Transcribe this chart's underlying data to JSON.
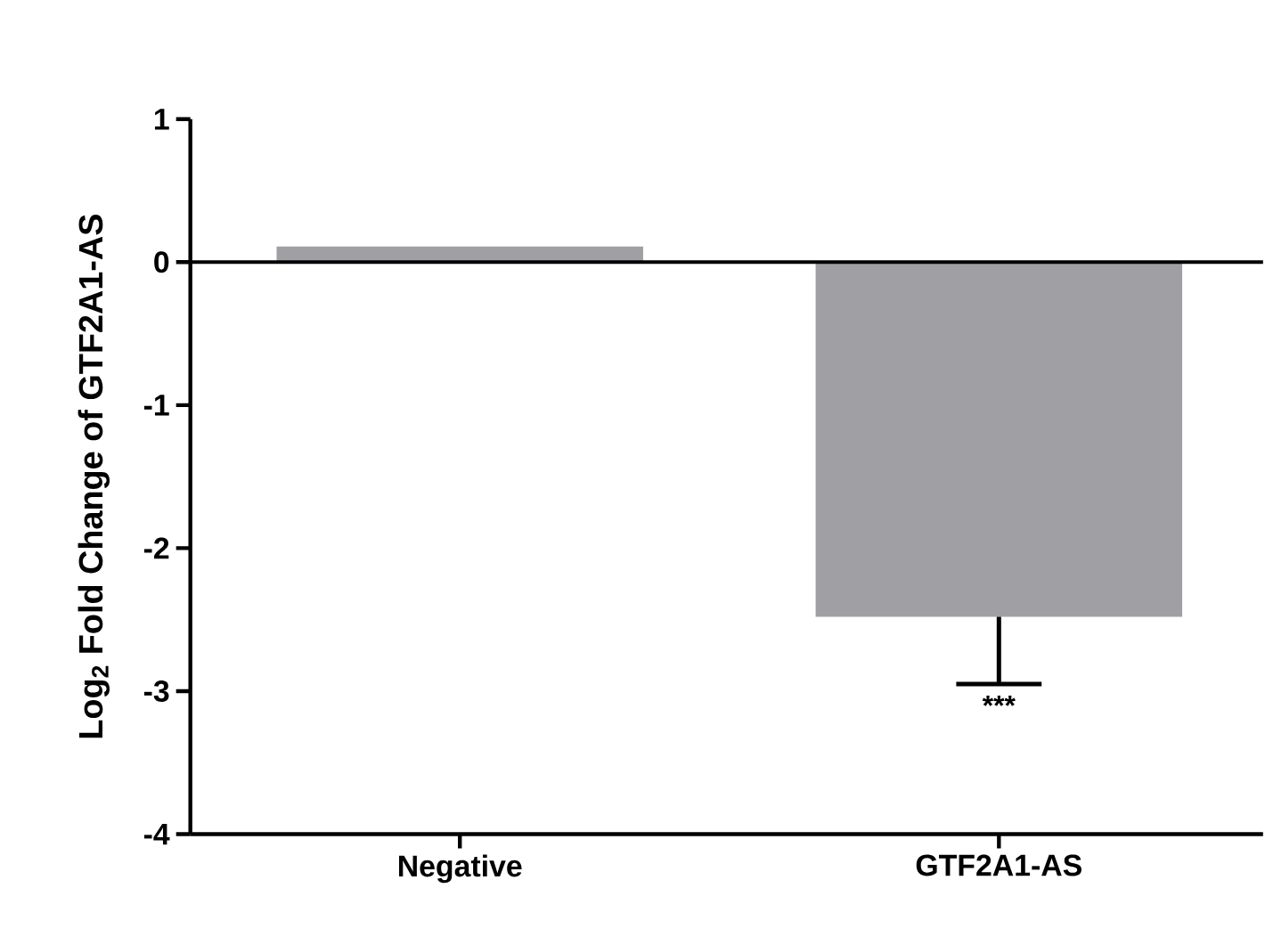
{
  "chart_data": {
    "type": "bar",
    "ylabel": "Log$_{2}$ Fold Change of GTF2A1-AS",
    "categories": [
      "Negative",
      "GTF2A1-AS"
    ],
    "values": [
      0.11,
      -2.48
    ],
    "errors": [
      null,
      [
        -2.95,
        -2.48
      ]
    ],
    "color": "#a0a0a4",
    "ylim": [
      -4,
      1
    ],
    "yticks": [
      -4,
      -3,
      -2,
      -1,
      0,
      1
    ],
    "ref_lines": [
      {
        "axis": "y",
        "value": 0,
        "color": "#000000"
      }
    ],
    "annotations": [
      "***"
    ],
    "grid": false
  }
}
